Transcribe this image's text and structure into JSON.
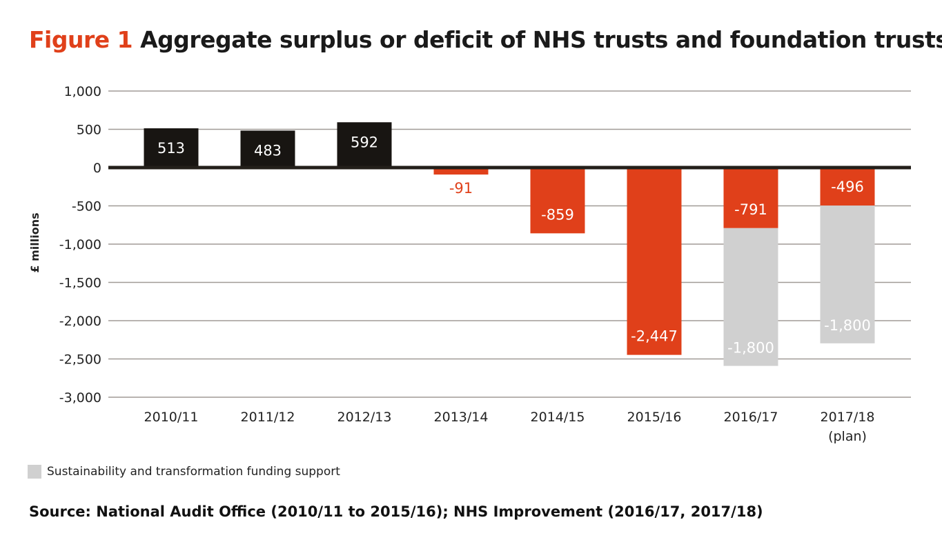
{
  "title": {
    "figure_label": "Figure 1",
    "text": "Aggregate surplus or deficit of NHS trusts and foundation trusts"
  },
  "chart_data": {
    "type": "bar",
    "stacked": true,
    "title": "Aggregate surplus or deficit of NHS trusts and foundation trusts",
    "ylabel": "£ millions",
    "xlabel": "",
    "ylim": [
      -3000,
      1000
    ],
    "yticks": [
      1000,
      500,
      0,
      -500,
      -1000,
      -1500,
      -2000,
      -2500,
      -3000
    ],
    "ytick_labels": [
      "1,000",
      "500",
      "0",
      "-500",
      "-1,000",
      "-1,500",
      "-2,000",
      "-2,500",
      "-3,000"
    ],
    "grid": true,
    "categories": [
      "2010/11",
      "2011/12",
      "2012/13",
      "2013/14",
      "2014/15",
      "2015/16",
      "2016/17",
      "2017/18"
    ],
    "category_sublabels": [
      "",
      "",
      "",
      "",
      "",
      "",
      "",
      "(plan)"
    ],
    "series": [
      {
        "key": "surplus_deficit",
        "values": [
          513,
          483,
          592,
          -91,
          -859,
          -2447,
          -791,
          -496
        ],
        "labels": [
          "513",
          "483",
          "592",
          "-91",
          "-859",
          "-2,447",
          "-791",
          "-496"
        ],
        "positive_color": "#181512",
        "negative_color": "#e0401a"
      },
      {
        "key": "stf",
        "name": "Sustainability and transformation funding support",
        "values": [
          null,
          null,
          null,
          null,
          null,
          null,
          -1800,
          -1800
        ],
        "labels": [
          "",
          "",
          "",
          "",
          "",
          "",
          "-1,800",
          "-1,800"
        ],
        "color": "#d0d0d0"
      }
    ],
    "legend": {
      "position": "bottom-left",
      "entries": [
        "Sustainability and transformation funding support"
      ]
    }
  },
  "legend_label": "Sustainability and transformation funding support",
  "source": "Source: National Audit Office (2010/11 to 2015/16); NHS Improvement (2016/17, 2017/18)"
}
